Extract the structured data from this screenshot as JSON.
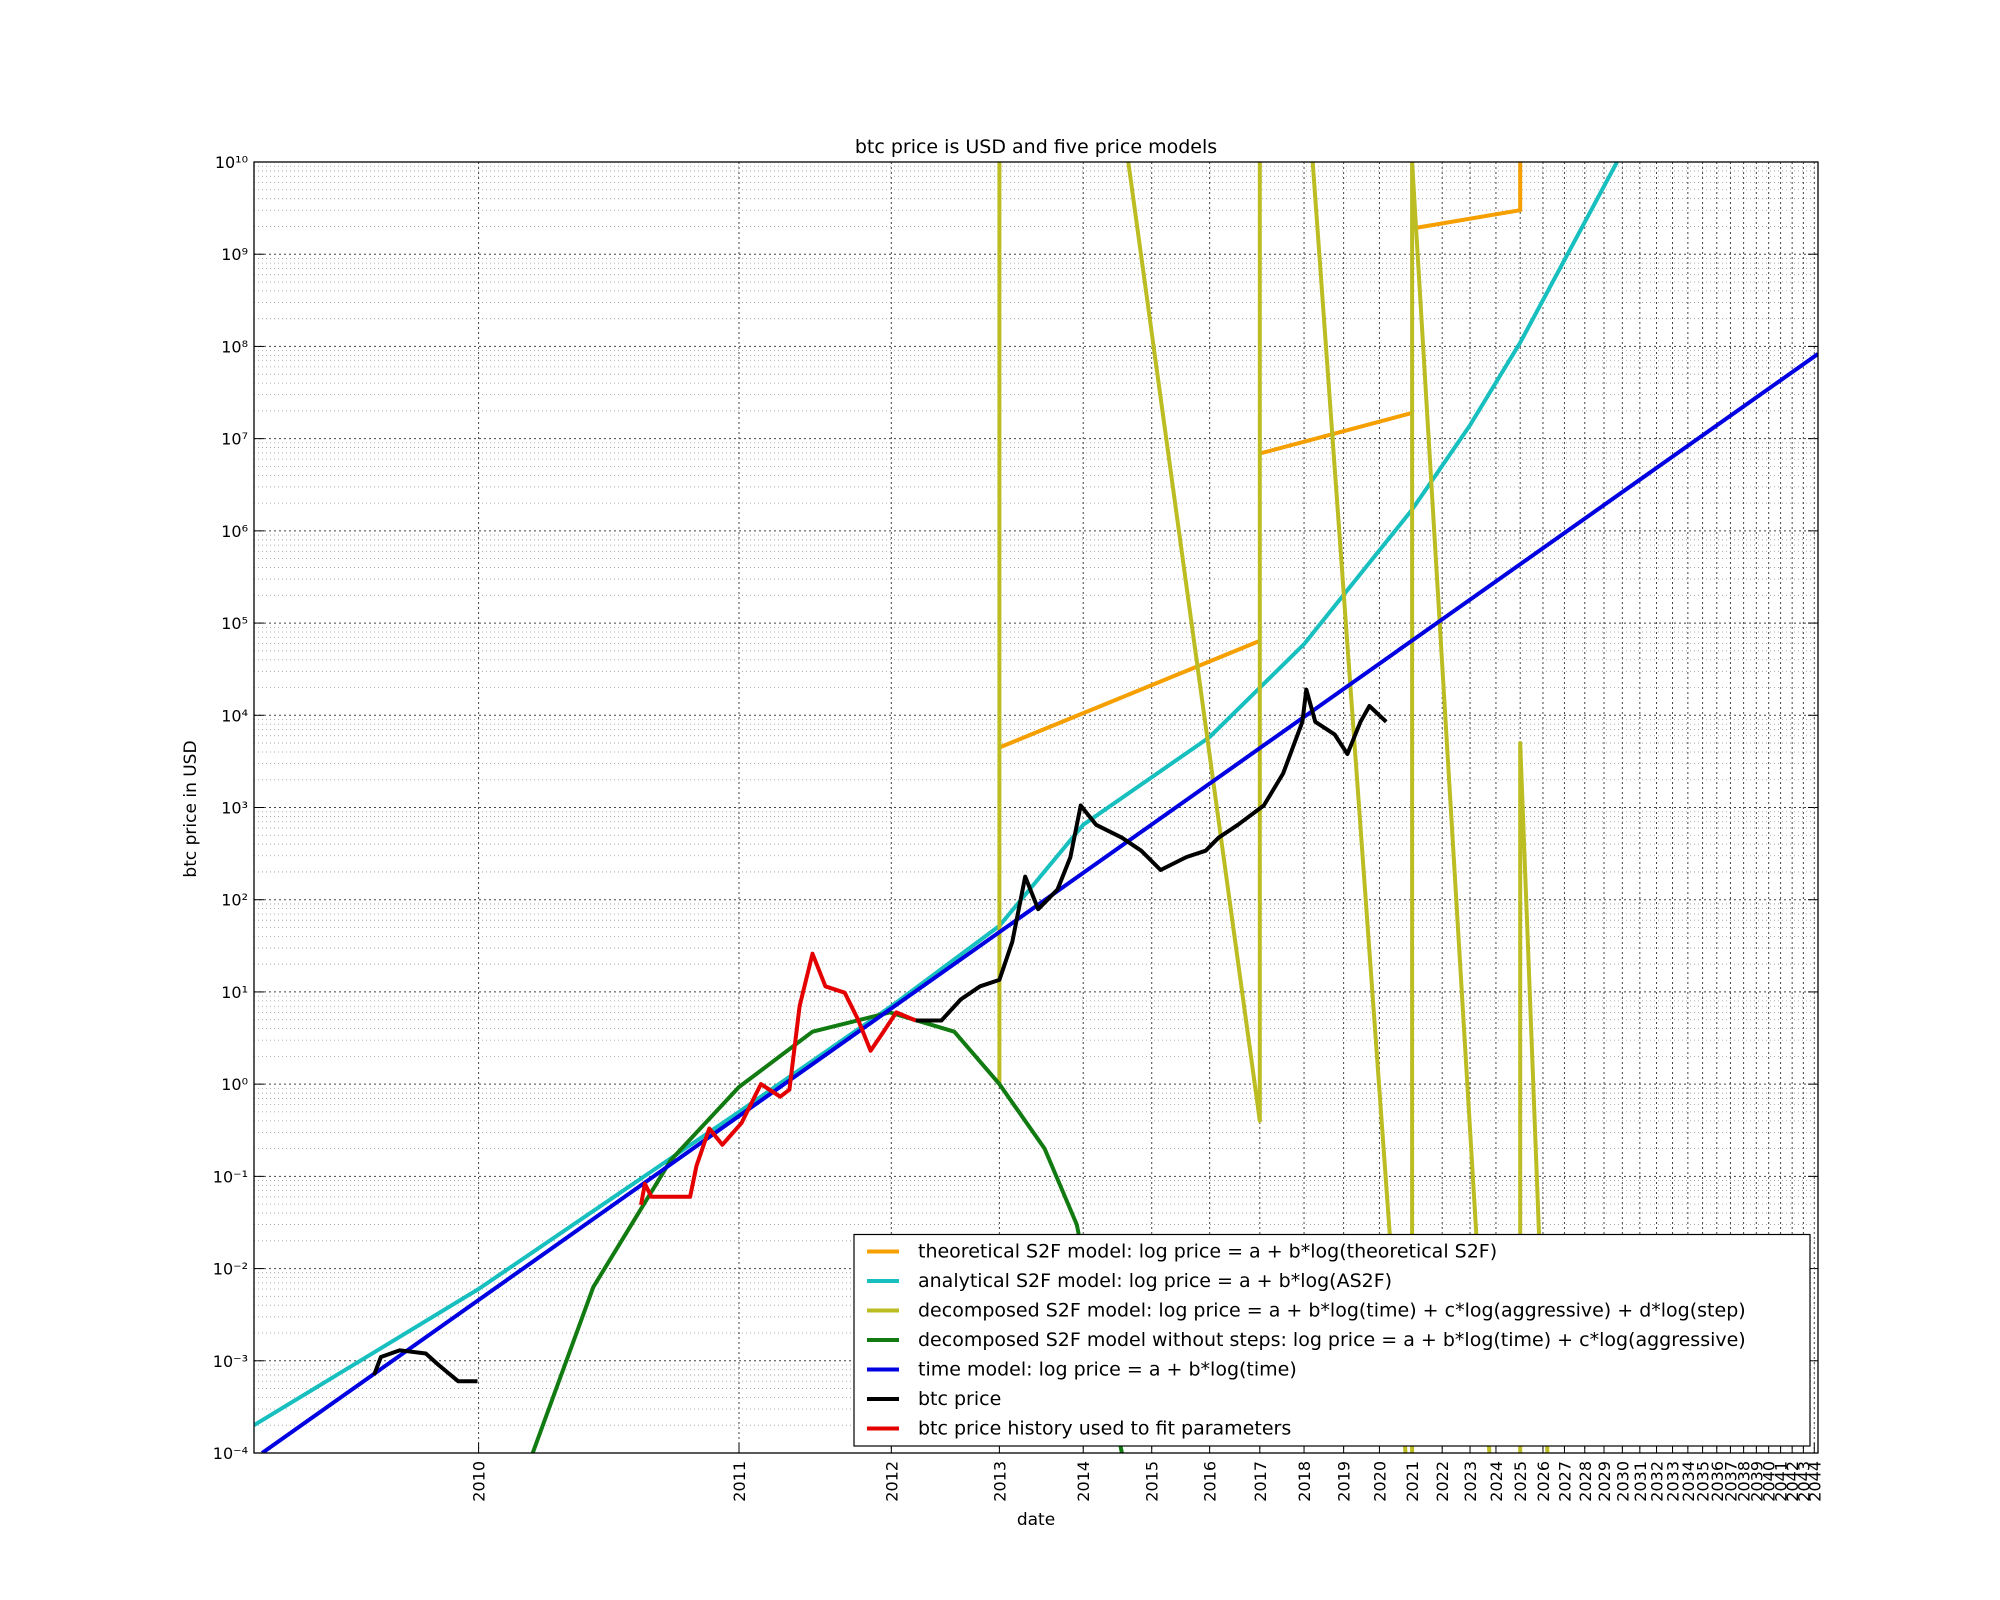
{
  "chart_data": {
    "type": "line",
    "title": "btc price is USD and five price models",
    "x_label": "date",
    "y_label": "btc price in USD",
    "xscale": "log",
    "yscale": "log",
    "grid": true,
    "legend": "lower right",
    "xlim": [
      0.55,
      35.35
    ],
    "ylim": [
      0.0001,
      10000000000
    ],
    "xticks": [
      {
        "value": 1,
        "label": "2010"
      },
      {
        "value": 2,
        "label": "2011"
      },
      {
        "value": 3,
        "label": "2012"
      },
      {
        "value": 4,
        "label": "2013"
      },
      {
        "value": 5,
        "label": "2014"
      },
      {
        "value": 6,
        "label": "2015"
      },
      {
        "value": 7,
        "label": "2016"
      },
      {
        "value": 8,
        "label": "2017"
      },
      {
        "value": 9,
        "label": "2018"
      },
      {
        "value": 10,
        "label": "2019"
      },
      {
        "value": 11,
        "label": "2020"
      },
      {
        "value": 12,
        "label": "2021"
      },
      {
        "value": 13,
        "label": "2022"
      },
      {
        "value": 14,
        "label": "2023"
      },
      {
        "value": 15,
        "label": "2024"
      },
      {
        "value": 16,
        "label": "2025"
      },
      {
        "value": 17,
        "label": "2026"
      },
      {
        "value": 18,
        "label": "2027"
      },
      {
        "value": 19,
        "label": "2028"
      },
      {
        "value": 20,
        "label": "2029"
      },
      {
        "value": 21,
        "label": "2030"
      },
      {
        "value": 22,
        "label": "2031"
      },
      {
        "value": 23,
        "label": "2032"
      },
      {
        "value": 24,
        "label": "2033"
      },
      {
        "value": 25,
        "label": "2034"
      },
      {
        "value": 26,
        "label": "2035"
      },
      {
        "value": 27,
        "label": "2036"
      },
      {
        "value": 28,
        "label": "2037"
      },
      {
        "value": 29,
        "label": "2038"
      },
      {
        "value": 30,
        "label": "2039"
      },
      {
        "value": 31,
        "label": "2040"
      },
      {
        "value": 32,
        "label": "2041"
      },
      {
        "value": 33,
        "label": "2042"
      },
      {
        "value": 34,
        "label": "2043"
      },
      {
        "value": 35,
        "label": "2044"
      }
    ],
    "yticks": [
      {
        "value": 0.0001,
        "label": "10⁻⁴"
      },
      {
        "value": 0.001,
        "label": "10⁻³"
      },
      {
        "value": 0.01,
        "label": "10⁻²"
      },
      {
        "value": 0.1,
        "label": "10⁻¹"
      },
      {
        "value": 1,
        "label": "10⁰"
      },
      {
        "value": 10,
        "label": "10¹"
      },
      {
        "value": 100,
        "label": "10²"
      },
      {
        "value": 1000,
        "label": "10³"
      },
      {
        "value": 10000,
        "label": "10⁴"
      },
      {
        "value": 100000,
        "label": "10⁵"
      },
      {
        "value": 1000000,
        "label": "10⁶"
      },
      {
        "value": 10000000,
        "label": "10⁷"
      },
      {
        "value": 100000000,
        "label": "10⁸"
      },
      {
        "value": 1000000000,
        "label": "10⁹"
      },
      {
        "value": 10000000000,
        "label": "10¹⁰"
      }
    ],
    "series": [
      {
        "name": "theoretical S2F model: log price = a + b*log(theoretical S2F)",
        "color": "#f5a000",
        "x": [
          4,
          8,
          8,
          8,
          12,
          12,
          12,
          16,
          16
        ],
        "values": [
          4470,
          64000,
          null,
          6900000,
          19000000,
          null,
          1900000000,
          3000000000,
          10000000000
        ]
      },
      {
        "name": "analytical S2F model: log price = a + b*log(AS2F)",
        "color": "#17bfbf",
        "x": [
          0.55,
          1,
          2,
          3,
          4,
          5,
          7,
          9,
          12,
          14,
          16,
          20.7
        ],
        "values": [
          0.0002,
          0.006,
          0.5,
          7,
          52,
          650,
          5800,
          59000,
          1700000,
          14000000,
          110000000,
          10000000000
        ]
      },
      {
        "name": "decomposed S2F model: log price = a + b*log(time) + c*log(aggressive) + d*log(step)",
        "color": "#bcbd22",
        "x": [
          4,
          4,
          4,
          5.638,
          8,
          8,
          8,
          9.21,
          11.79,
          11.79,
          12,
          12,
          14.74,
          14.74,
          16,
          16,
          17.2
        ],
        "values": [
          1,
          10000000000,
          null,
          10000000000,
          0.4,
          10000000000,
          null,
          10000000000,
          0.0001,
          null,
          0.0001,
          10000000000,
          0.0001,
          null,
          0.0001,
          5000,
          0.0001
        ]
      },
      {
        "name": "decomposed S2F model without steps: log price = a + b*log(time) + c*log(aggressive)",
        "color": "#117a11",
        "x": [
          1.155,
          1.357,
          1.668,
          2,
          2.432,
          2.988,
          3.548,
          4,
          4.511,
          4.915,
          5.542
        ],
        "values": [
          0.0001,
          0.0063,
          0.15,
          0.93,
          3.7,
          6,
          3.7,
          1,
          0.2,
          0.03,
          0.0001
        ]
      },
      {
        "name": "time model: log price = a + b*log(time)",
        "color": "#0000e0",
        "x": [
          0.562,
          1,
          4,
          16,
          35.35
        ],
        "values": [
          0.0001,
          0.00456,
          44.6,
          435000,
          83000000
        ]
      },
      {
        "name": "btc price",
        "color": "#000000",
        "x": [
          0.757,
          0.771,
          0.811,
          0.869,
          0.899,
          0.947,
          0.997,
          null,
          3.201,
          3.428,
          3.609,
          3.8,
          4,
          4.14,
          4.284,
          4.435,
          4.669,
          4.832,
          4.966,
          5.174,
          5.542,
          5.834,
          6.143,
          6.579,
          6.927,
          7.169,
          7.548,
          8.085,
          8.511,
          8.961,
          9.054,
          9.274,
          9.763,
          10.1,
          10.46,
          10.71,
          11.2
        ],
        "values": [
          0.0007,
          0.0011,
          0.0013,
          0.0012,
          0.0009,
          0.0006,
          0.0006,
          null,
          4.9,
          4.9,
          8.3,
          11.5,
          13.5,
          35,
          178,
          79,
          129,
          290,
          1050,
          650,
          470,
          340,
          210,
          290,
          340,
          470,
          650,
          1050,
          2340,
          8500,
          19000,
          8500,
          6200,
          3800,
          8500,
          12600,
          8500
        ]
      },
      {
        "name": "btc price history used to fit parameters",
        "color": "#e50000",
        "x": [
          1.541,
          1.557,
          1.584,
          1.756,
          1.786,
          1.848,
          1.913,
          2.014,
          2.12,
          2.232,
          2.287,
          2.35,
          2.432,
          2.517,
          2.65,
          2.743,
          2.839,
          2.938,
          3.04,
          3.201
        ],
        "values": [
          0.049,
          0.083,
          0.06,
          0.06,
          0.13,
          0.33,
          0.22,
          0.38,
          1,
          0.73,
          0.87,
          7,
          26,
          11.5,
          9.8,
          5.1,
          2.3,
          3.7,
          6,
          4.9
        ]
      }
    ]
  }
}
